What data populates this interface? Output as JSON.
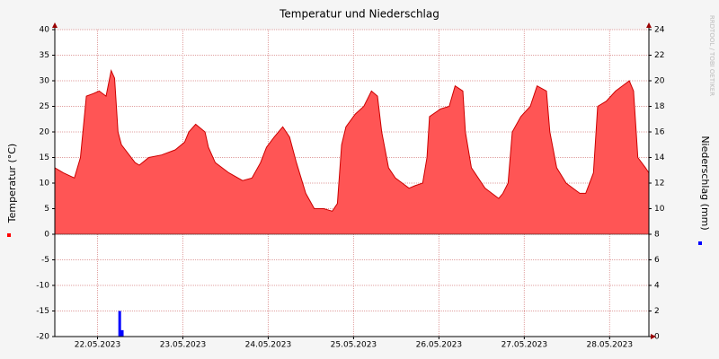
{
  "chart_data": {
    "type": "area",
    "title": "Temperatur und Niederschlag",
    "ylabel": "Temperatur (°C)",
    "y2label": "Niederschlag (mm)",
    "watermark": "RRDTOOL / TOBI OETIKER",
    "xlim": [
      0,
      6.96
    ],
    "xticks": [
      {
        "value": 0.5,
        "label": "22.05.2023"
      },
      {
        "value": 1.5,
        "label": "23.05.2023"
      },
      {
        "value": 2.5,
        "label": "24.05.2023"
      },
      {
        "value": 3.5,
        "label": "25.05.2023"
      },
      {
        "value": 4.5,
        "label": "26.05.2023"
      },
      {
        "value": 5.5,
        "label": "27.05.2023"
      },
      {
        "value": 6.5,
        "label": "28.05.2023"
      }
    ],
    "ylim": [
      -20,
      40
    ],
    "yticks": [
      -20,
      -15,
      -10,
      -5,
      0,
      5,
      10,
      15,
      20,
      25,
      30,
      35,
      40
    ],
    "y2lim": [
      0,
      24
    ],
    "y2ticks": [
      0,
      2,
      4,
      6,
      8,
      10,
      12,
      14,
      16,
      18,
      20,
      22,
      24
    ],
    "grid": true,
    "series": [
      {
        "type": "area",
        "color": "#ff5555",
        "line_color": "#cc0000",
        "x": [
          0,
          0.1,
          0.23,
          0.3,
          0.37,
          0.45,
          0.52,
          0.6,
          0.66,
          0.7,
          0.74,
          0.78,
          0.94,
          0.99,
          1.1,
          1.25,
          1.41,
          1.52,
          1.57,
          1.65,
          1.76,
          1.8,
          1.88,
          2.04,
          2.2,
          2.31,
          2.41,
          2.48,
          2.57,
          2.67,
          2.75,
          2.83,
          2.94,
          3.04,
          3.15,
          3.25,
          3.31,
          3.36,
          3.41,
          3.52,
          3.62,
          3.71,
          3.78,
          3.83,
          3.91,
          3.99,
          4.15,
          4.22,
          4.31,
          4.36,
          4.39,
          4.52,
          4.62,
          4.69,
          4.78,
          4.81,
          4.88,
          5.04,
          5.2,
          5.25,
          5.31,
          5.36,
          5.46,
          5.57,
          5.65,
          5.76,
          5.8,
          5.88,
          5.99,
          6.15,
          6.22,
          6.31,
          6.36,
          6.46,
          6.57,
          6.73,
          6.78,
          6.83,
          6.92,
          6.96
        ],
        "values": [
          13,
          12,
          11,
          15,
          27,
          27.5,
          28,
          27,
          32,
          30.5,
          20,
          17.5,
          14,
          13.5,
          15,
          15.5,
          16.5,
          18,
          20,
          21.5,
          20,
          17,
          14,
          12,
          10.5,
          11,
          14,
          17,
          19,
          21,
          19,
          14,
          8,
          5,
          5,
          4.5,
          6,
          17.5,
          21,
          23.5,
          25,
          28,
          27,
          20,
          13,
          11,
          9,
          9.5,
          10,
          15,
          23,
          24.5,
          25,
          29,
          28,
          20,
          13,
          9,
          7,
          8,
          10,
          20,
          23,
          25,
          29,
          28,
          20,
          13,
          10,
          8,
          8,
          12,
          25,
          26,
          28,
          30,
          28,
          15,
          13,
          12
        ]
      },
      {
        "type": "bar",
        "axis": "y2",
        "color": "#0000ff",
        "x": [
          0.76,
          0.79
        ],
        "values": [
          2,
          0.5
        ]
      }
    ]
  }
}
